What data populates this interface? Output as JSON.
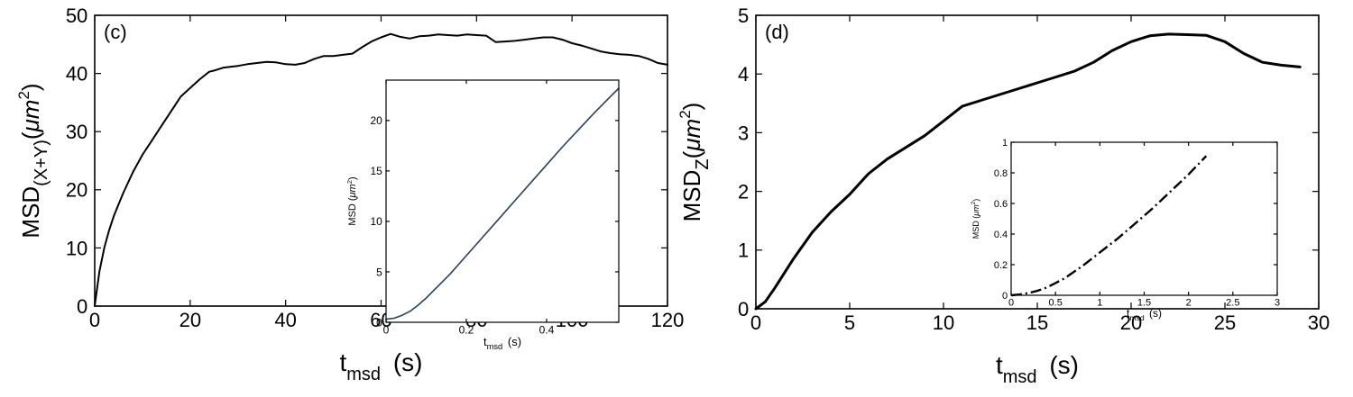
{
  "chart_data": [
    {
      "id": "main_c",
      "type": "line",
      "panel_label": "(c)",
      "xlabel": "t",
      "xlabel_sub": "msd",
      "xlabel_unit": "(s)",
      "ylabel_main": "MSD",
      "ylabel_sub": "(X+Y)",
      "ylabel_unit_open": "(",
      "ylabel_unit_mu": "μm",
      "ylabel_unit_sup": "2",
      "ylabel_unit_close": ")",
      "xlim": [
        0,
        120
      ],
      "ylim": [
        0,
        50
      ],
      "xticks": [
        0,
        20,
        40,
        60,
        80,
        100,
        120
      ],
      "yticks": [
        0,
        10,
        20,
        30,
        40,
        50
      ],
      "xtick_labels": [
        "0",
        "20",
        "40",
        "60",
        "80",
        "100",
        "120"
      ],
      "ytick_labels": [
        "0",
        "10",
        "20",
        "30",
        "40",
        "50"
      ],
      "series": [
        {
          "color": "#000000",
          "x": [
            0,
            0.5,
            1,
            2,
            3,
            4,
            5,
            6,
            8,
            10,
            12,
            14,
            16,
            18,
            20,
            22,
            24,
            25,
            27,
            30,
            32,
            34,
            36,
            38,
            40,
            42,
            44,
            46,
            48,
            50,
            52,
            54,
            56,
            58,
            60,
            62,
            64,
            66,
            68,
            70,
            72,
            74,
            76,
            78,
            80,
            82,
            84,
            86,
            88,
            90,
            92,
            94,
            96,
            98,
            100,
            102,
            104,
            106,
            108,
            110,
            112,
            114,
            116,
            118,
            120
          ],
          "y": [
            0,
            3,
            6,
            10,
            13,
            15.5,
            17.5,
            19.5,
            23,
            26,
            28.5,
            31,
            33.5,
            36,
            37.5,
            39,
            40.3,
            40.5,
            41,
            41.3,
            41.6,
            41.8,
            42,
            41.9,
            41.6,
            41.5,
            41.8,
            42.5,
            43,
            43,
            43.2,
            43.4,
            44.5,
            45.5,
            46.2,
            46.8,
            46.3,
            46,
            46.4,
            46.5,
            46.7,
            46.6,
            46.5,
            46.7,
            46.6,
            46.5,
            45.4,
            45.5,
            45.6,
            45.8,
            46,
            46.2,
            46.2,
            45.8,
            45.2,
            44.8,
            44.3,
            43.8,
            43.5,
            43.3,
            43.2,
            43,
            42.5,
            41.8,
            41.5
          ]
        }
      ]
    },
    {
      "id": "inset_c",
      "type": "line",
      "xlabel": "t",
      "xlabel_sub": "msd",
      "xlabel_unit": "(s)",
      "ylabel": "MSD",
      "ylabel_unit_open": "(",
      "ylabel_unit_mu": "μm",
      "ylabel_unit_sup": "2",
      "ylabel_unit_close": ")",
      "xlim": [
        0,
        0.58
      ],
      "ylim": [
        0,
        24
      ],
      "xticks": [
        0,
        0.2,
        0.4
      ],
      "yticks": [
        0,
        5,
        10,
        15,
        20
      ],
      "xtick_labels": [
        "0",
        "0.2",
        "0.4"
      ],
      "ytick_labels": [
        "0",
        "5",
        "10",
        "15",
        "20"
      ],
      "series": [
        {
          "color": "#2a3f5a",
          "x": [
            0,
            0.02,
            0.04,
            0.06,
            0.08,
            0.1,
            0.12,
            0.14,
            0.16,
            0.2,
            0.24,
            0.28,
            0.32,
            0.36,
            0.4,
            0.44,
            0.48,
            0.52,
            0.56,
            0.58
          ],
          "y": [
            0.3,
            0.4,
            0.7,
            1.1,
            1.7,
            2.4,
            3.2,
            4.0,
            4.8,
            6.6,
            8.4,
            10.2,
            12.0,
            13.8,
            15.6,
            17.4,
            19.1,
            20.8,
            22.4,
            23.2
          ]
        }
      ]
    },
    {
      "id": "main_d",
      "type": "line",
      "panel_label": "(d)",
      "xlabel": "t",
      "xlabel_sub": "msd",
      "xlabel_unit": "(s)",
      "ylabel_main": "MSD",
      "ylabel_sub": "Z",
      "ylabel_unit_open": "(",
      "ylabel_unit_mu": "μm",
      "ylabel_unit_sup": "2",
      "ylabel_unit_close": ")",
      "xlim": [
        0,
        30
      ],
      "ylim": [
        0,
        5
      ],
      "xticks": [
        0,
        5,
        10,
        15,
        20,
        25,
        30
      ],
      "yticks": [
        0,
        1,
        2,
        3,
        4,
        5
      ],
      "xtick_labels": [
        "0",
        "5",
        "10",
        "15",
        "20",
        "25",
        "30"
      ],
      "ytick_labels": [
        "0",
        "1",
        "2",
        "3",
        "4",
        "5"
      ],
      "series": [
        {
          "color": "#000000",
          "x": [
            0,
            0.5,
            1,
            2,
            3,
            4,
            5,
            6,
            7,
            8,
            9,
            10,
            11,
            12,
            13,
            14,
            15,
            16,
            17,
            18,
            19,
            20,
            21,
            22,
            23,
            24,
            25,
            26,
            27,
            28,
            29
          ],
          "y": [
            0,
            0.12,
            0.35,
            0.85,
            1.3,
            1.65,
            1.95,
            2.3,
            2.55,
            2.75,
            2.95,
            3.2,
            3.45,
            3.55,
            3.65,
            3.75,
            3.85,
            3.95,
            4.05,
            4.2,
            4.4,
            4.55,
            4.65,
            4.68,
            4.67,
            4.66,
            4.55,
            4.35,
            4.2,
            4.15,
            4.12
          ]
        }
      ]
    },
    {
      "id": "inset_d",
      "type": "line",
      "xlabel": "t",
      "xlabel_sub": "msd",
      "xlabel_unit": "(s)",
      "ylabel": "MSD",
      "ylabel_unit_open": "(",
      "ylabel_unit_mu": "μm",
      "ylabel_unit_sup": "2",
      "ylabel_unit_close": ")",
      "xlim": [
        0,
        3
      ],
      "ylim": [
        0,
        1
      ],
      "xticks": [
        0,
        0.5,
        1,
        1.5,
        2,
        2.5,
        3
      ],
      "yticks": [
        0,
        0.2,
        0.4,
        0.6,
        0.8,
        1
      ],
      "xtick_labels": [
        "0",
        "0.5",
        "1",
        "1.5",
        "2",
        "2.5",
        "3"
      ],
      "ytick_labels": [
        "0",
        "0.2",
        "0.4",
        "0.6",
        "0.8",
        "1"
      ],
      "series": [
        {
          "color": "#000000",
          "dash": "dashdot",
          "x": [
            0,
            0.1,
            0.2,
            0.3,
            0.4,
            0.5,
            0.6,
            0.8,
            1.0,
            1.2,
            1.4,
            1.6,
            1.8,
            2.0,
            2.2
          ],
          "y": [
            0,
            0.005,
            0.015,
            0.03,
            0.05,
            0.08,
            0.11,
            0.19,
            0.28,
            0.37,
            0.47,
            0.57,
            0.68,
            0.79,
            0.91
          ]
        }
      ]
    }
  ]
}
